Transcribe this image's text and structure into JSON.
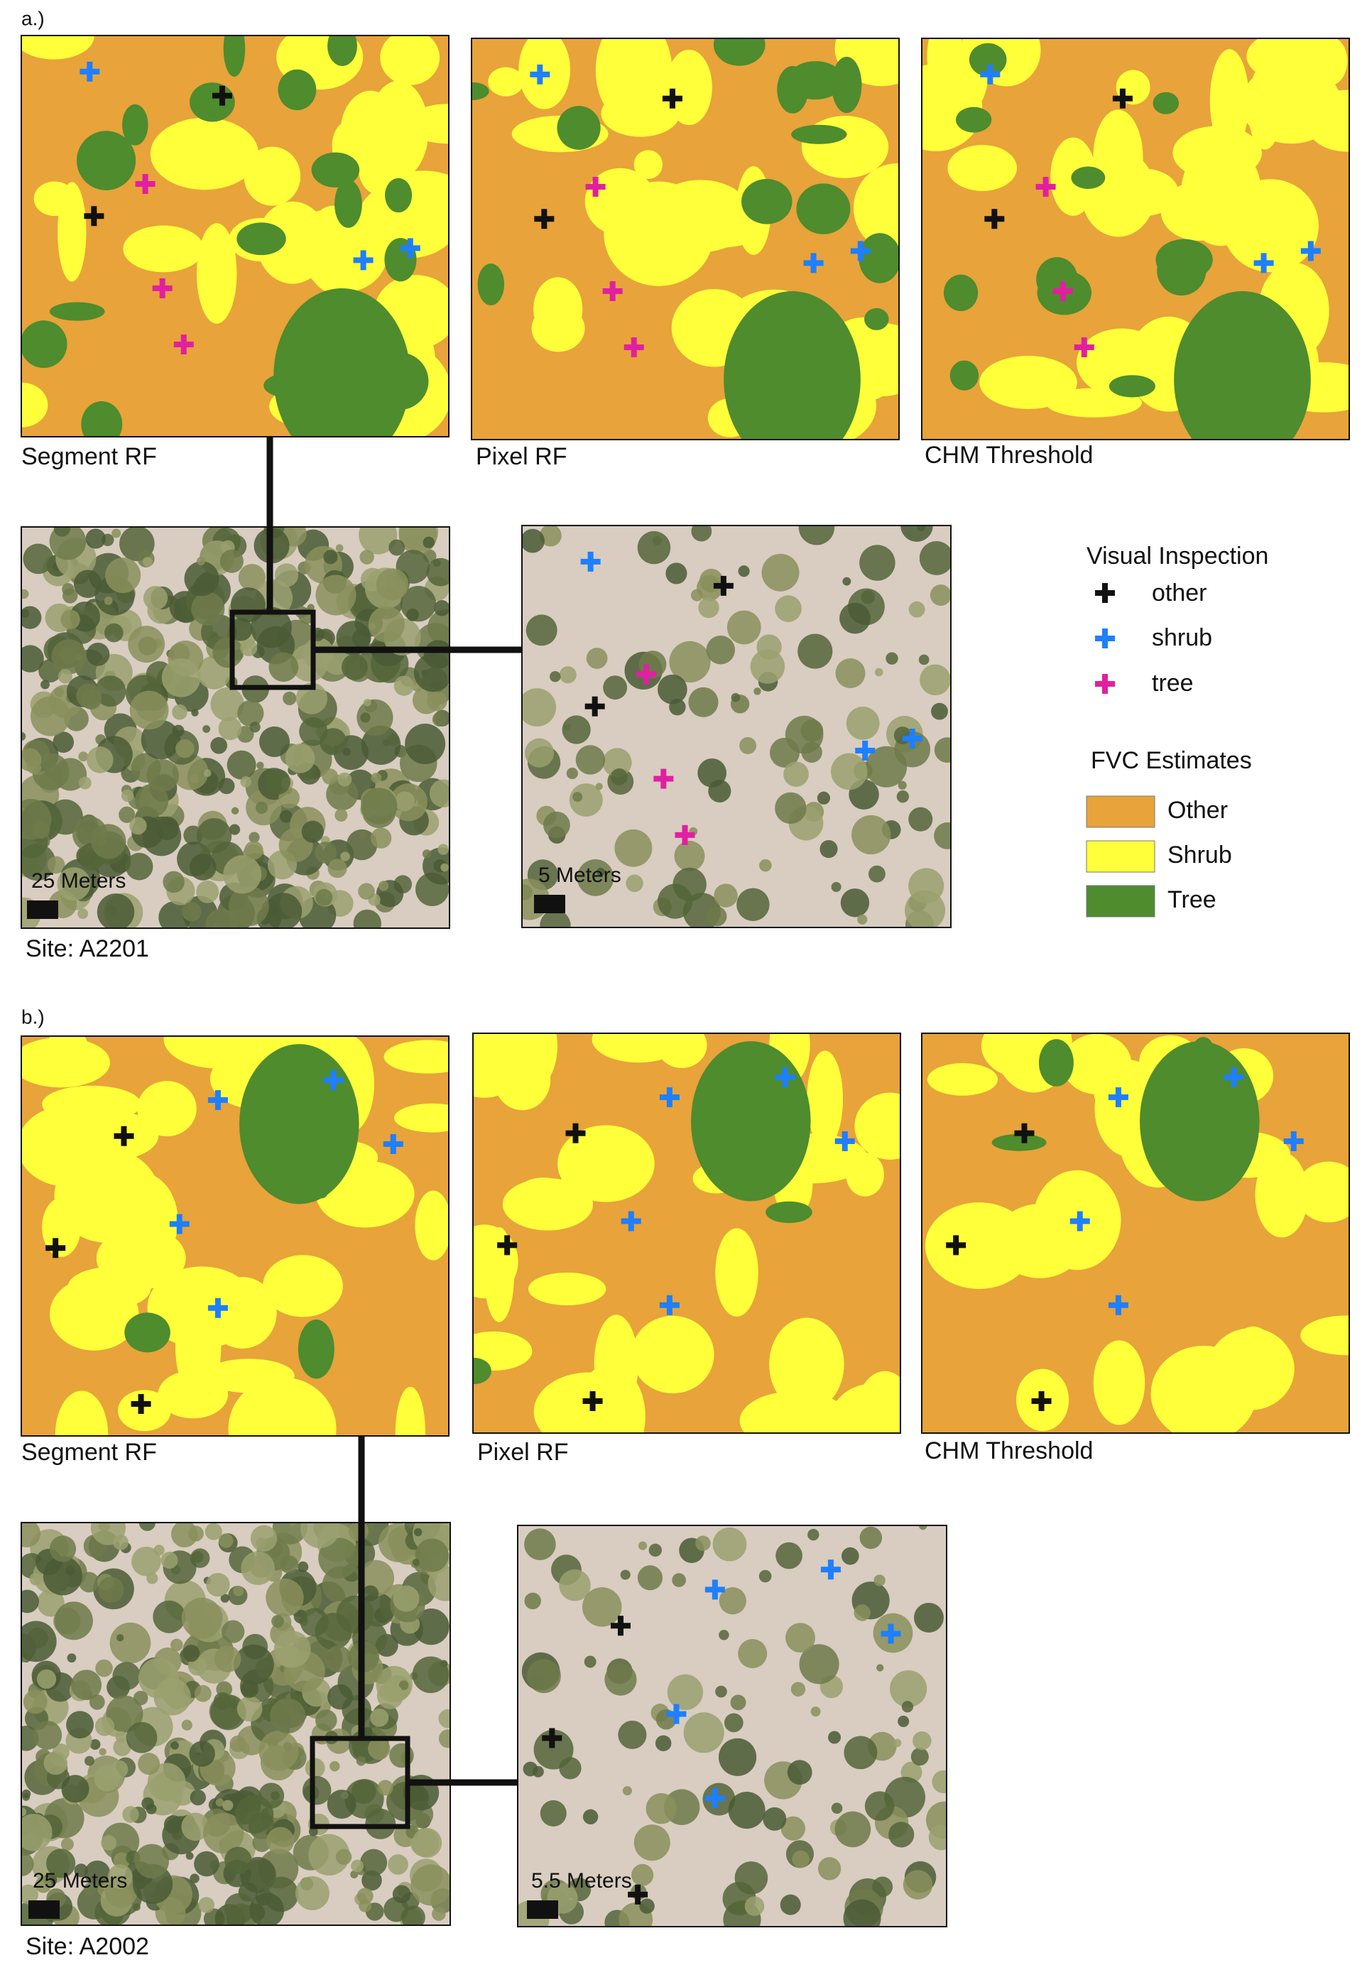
{
  "panels": [
    {
      "label": "a.)",
      "maps": [
        "Segment RF",
        "Pixel RF",
        "CHM Threshold"
      ],
      "scale_overview": "25 Meters",
      "scale_zoom": "5 Meters",
      "site": "Site: A2201"
    },
    {
      "label": "b.)",
      "maps": [
        "Segment RF",
        "Pixel RF",
        "CHM Threshold"
      ],
      "scale_overview": "25 Meters",
      "scale_zoom": "5.5 Meters",
      "site": "Site: A2002"
    }
  ],
  "legend": {
    "inspection_title": "Visual Inspection",
    "inspection_items": [
      "other",
      "shrub",
      "tree"
    ],
    "fvc_title": "FVC Estimates",
    "fvc_items": [
      "Other",
      "Shrub",
      "Tree"
    ]
  }
}
